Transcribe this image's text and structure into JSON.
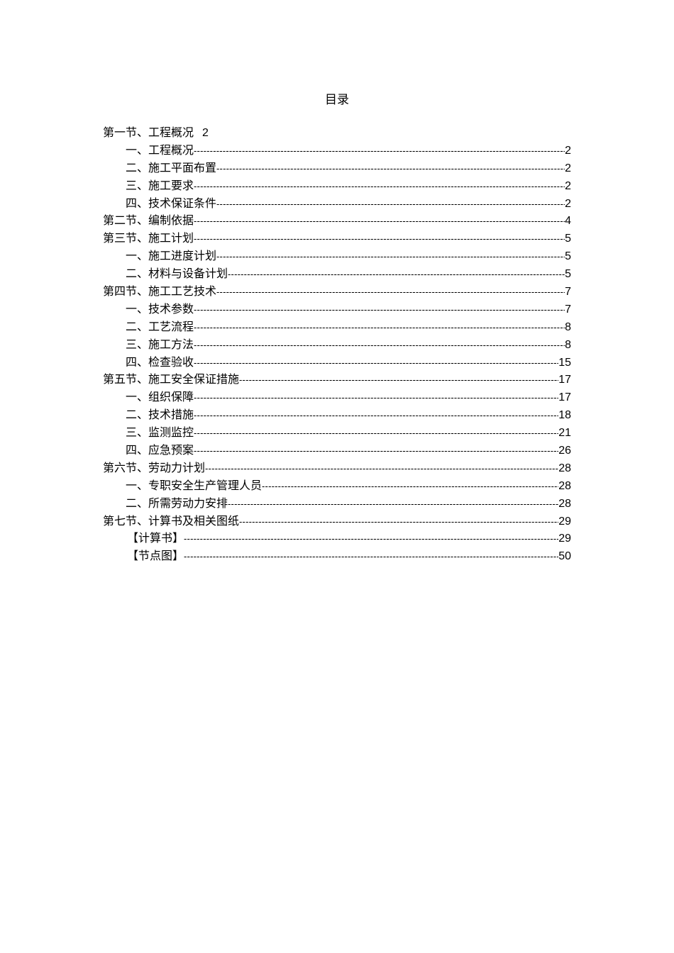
{
  "title": "目录",
  "entries": [
    {
      "label": "第一节、工程概况",
      "page": "2",
      "level": 1,
      "leader": false
    },
    {
      "label": "一、工程概况",
      "page": "2",
      "level": 2,
      "leader": true
    },
    {
      "label": "二、施工平面布置",
      "page": "2",
      "level": 2,
      "leader": true
    },
    {
      "label": "三、施工要求",
      "page": "2",
      "level": 2,
      "leader": true
    },
    {
      "label": "四、技术保证条件",
      "page": "2",
      "level": 2,
      "leader": true
    },
    {
      "label": "第二节、编制依据",
      "page": "4",
      "level": 1,
      "leader": true
    },
    {
      "label": "第三节、施工计划",
      "page": "5",
      "level": 1,
      "leader": true
    },
    {
      "label": "一、施工进度计划",
      "page": "5",
      "level": 2,
      "leader": true
    },
    {
      "label": "二、材料与设备计划",
      "page": "5",
      "level": 2,
      "leader": true
    },
    {
      "label": "第四节、施工工艺技术",
      "page": "7",
      "level": 1,
      "leader": true
    },
    {
      "label": "一、技术参数",
      "page": "7",
      "level": 2,
      "leader": true
    },
    {
      "label": "二、工艺流程",
      "page": "8",
      "level": 2,
      "leader": true
    },
    {
      "label": "三、施工方法",
      "page": "8",
      "level": 2,
      "leader": true
    },
    {
      "label": "四、检查验收",
      "page": "15",
      "level": 2,
      "leader": true
    },
    {
      "label": "第五节、施工安全保证措施",
      "page": "17",
      "level": 1,
      "leader": true
    },
    {
      "label": "一、组织保障",
      "page": "17",
      "level": 2,
      "leader": true
    },
    {
      "label": "二、技术措施",
      "page": "18",
      "level": 2,
      "leader": true
    },
    {
      "label": "三、监测监控",
      "page": "21",
      "level": 2,
      "leader": true
    },
    {
      "label": "四、应急预案",
      "page": "26",
      "level": 2,
      "leader": true
    },
    {
      "label": "第六节、劳动力计划",
      "page": "28",
      "level": 1,
      "leader": true
    },
    {
      "label": "一、专职安全生产管理人员",
      "page": "28",
      "level": 2,
      "leader": true
    },
    {
      "label": "二、所需劳动力安排",
      "page": "28",
      "level": 2,
      "leader": true
    },
    {
      "label": "第七节、计算书及相关图纸",
      "page": "29",
      "level": 1,
      "leader": true
    },
    {
      "label": "【计算书】",
      "page": "29",
      "level": 3,
      "leader": true
    },
    {
      "label": "【节点图】",
      "page": "50",
      "level": 3,
      "leader": true
    }
  ]
}
